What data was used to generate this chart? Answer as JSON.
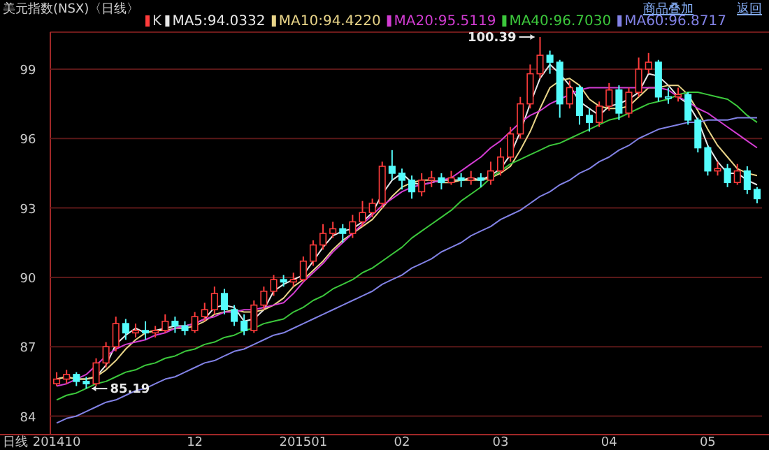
{
  "chart_data": {
    "type": "candlestick",
    "title": "美元指数(NSX)〈日线〉",
    "xlabel": "日线",
    "legend": "top left",
    "grid": "y",
    "ylim": [
      83.2,
      100.6
    ],
    "yticks": [
      84,
      87,
      90,
      93,
      96,
      99
    ],
    "annotations": [
      "商品叠加",
      "返回",
      "100.39",
      "85.19"
    ],
    "categories": [
      "201410",
      null,
      null,
      null,
      null,
      null,
      null,
      null,
      null,
      null,
      null,
      null,
      null,
      null,
      "12",
      null,
      null,
      null,
      null,
      null,
      null,
      null,
      null,
      null,
      null,
      "201501",
      null,
      null,
      null,
      null,
      null,
      null,
      null,
      null,
      null,
      "02",
      null,
      null,
      null,
      null,
      null,
      null,
      null,
      null,
      null,
      "03",
      null,
      null,
      null,
      null,
      null,
      null,
      null,
      null,
      null,
      null,
      "04",
      null,
      null,
      null,
      null,
      null,
      null,
      null,
      null,
      null,
      "05",
      null,
      null,
      null,
      null,
      null
    ],
    "series": [
      {
        "name": "K",
        "colors": [
          "#ff3c3c",
          "#ff3c3c",
          "#54fcfc",
          "#54fcfc",
          "#ff3c3c",
          "#ff3c3c",
          "#ff3c3c",
          "#54fcfc",
          "#ff3c3c",
          "#54fcfc",
          "#ff3c3c",
          "#ff3c3c",
          "#54fcfc",
          "#54fcfc",
          "#ff3c3c",
          "#ff3c3c",
          "#ff3c3c",
          "#54fcfc",
          "#54fcfc",
          "#54fcfc",
          "#ff3c3c",
          "#ff3c3c",
          "#ff3c3c",
          "#54fcfc",
          "#ff3c3c",
          "#ff3c3c",
          "#ff3c3c",
          "#ff3c3c",
          "#ff3c3c",
          "#54fcfc",
          "#ff3c3c",
          "#ff3c3c",
          "#ff3c3c",
          "#ff3c3c",
          "#54fcfc",
          "#54fcfc",
          "#54fcfc",
          "#ff3c3c",
          "#ff3c3c",
          "#54fcfc",
          "#ff3c3c",
          "#54fcfc",
          "#ff3c3c",
          "#54fcfc",
          "#ff3c3c",
          "#ff3c3c",
          "#ff3c3c",
          "#ff3c3c",
          "#ff3c3c",
          "#ff3c3c",
          "#54fcfc",
          "#54fcfc",
          "#ff3c3c",
          "#54fcfc",
          "#54fcfc",
          "#ff3c3c",
          "#ff3c3c",
          "#54fcfc",
          "#ff3c3c",
          "#ff3c3c",
          "#ff3c3c",
          "#54fcfc",
          "#54fcfc",
          "#ff3c3c",
          "#54fcfc",
          "#54fcfc",
          "#54fcfc",
          "#ff3c3c",
          "#54fcfc",
          "#ff3c3c",
          "#54fcfc",
          "#54fcfc"
        ],
        "ohlc": [
          [
            85.4,
            85.9,
            85.3,
            85.6
          ],
          [
            85.6,
            86.0,
            85.4,
            85.8
          ],
          [
            85.8,
            85.9,
            85.3,
            85.5
          ],
          [
            85.5,
            85.7,
            85.19,
            85.4
          ],
          [
            85.4,
            86.5,
            85.3,
            86.3
          ],
          [
            86.3,
            87.2,
            86.1,
            87.0
          ],
          [
            87.0,
            88.3,
            86.8,
            88.0
          ],
          [
            88.0,
            88.2,
            87.3,
            87.6
          ],
          [
            87.6,
            88.0,
            87.4,
            87.7
          ],
          [
            87.7,
            88.1,
            87.3,
            87.6
          ],
          [
            87.6,
            87.9,
            87.4,
            87.7
          ],
          [
            87.7,
            88.4,
            87.6,
            88.1
          ],
          [
            88.1,
            88.3,
            87.6,
            87.9
          ],
          [
            87.9,
            88.1,
            87.5,
            87.7
          ],
          [
            87.7,
            88.5,
            87.6,
            88.3
          ],
          [
            88.3,
            88.9,
            88.1,
            88.6
          ],
          [
            88.6,
            89.6,
            88.4,
            89.3
          ],
          [
            89.3,
            89.5,
            88.4,
            88.6
          ],
          [
            88.6,
            88.8,
            87.9,
            88.1
          ],
          [
            88.1,
            88.4,
            87.5,
            87.7
          ],
          [
            87.7,
            89.0,
            87.6,
            88.8
          ],
          [
            88.8,
            89.6,
            88.6,
            89.4
          ],
          [
            89.4,
            90.1,
            89.2,
            89.9
          ],
          [
            89.9,
            90.1,
            89.6,
            89.8
          ],
          [
            89.8,
            90.2,
            89.6,
            89.9
          ],
          [
            89.9,
            90.9,
            89.8,
            90.7
          ],
          [
            90.7,
            91.6,
            90.5,
            91.4
          ],
          [
            91.4,
            92.3,
            91.2,
            91.9
          ],
          [
            91.9,
            92.4,
            91.7,
            92.1
          ],
          [
            92.1,
            92.3,
            91.5,
            91.9
          ],
          [
            91.9,
            92.7,
            91.7,
            92.4
          ],
          [
            92.4,
            93.3,
            92.2,
            92.8
          ],
          [
            92.8,
            93.4,
            92.6,
            93.2
          ],
          [
            93.2,
            95.0,
            93.0,
            94.8
          ],
          [
            94.8,
            95.5,
            94.2,
            94.5
          ],
          [
            94.5,
            94.7,
            93.8,
            94.2
          ],
          [
            94.2,
            94.4,
            93.4,
            93.7
          ],
          [
            93.7,
            94.5,
            93.5,
            94.2
          ],
          [
            94.2,
            94.6,
            93.9,
            94.3
          ],
          [
            94.3,
            94.5,
            93.8,
            94.1
          ],
          [
            94.1,
            94.6,
            94.0,
            94.3
          ],
          [
            94.3,
            94.5,
            93.9,
            94.2
          ],
          [
            94.2,
            94.6,
            94.0,
            94.3
          ],
          [
            94.3,
            94.5,
            93.9,
            94.2
          ],
          [
            94.2,
            95.0,
            94.0,
            94.6
          ],
          [
            94.6,
            95.6,
            94.4,
            95.2
          ],
          [
            95.2,
            96.5,
            95.0,
            96.2
          ],
          [
            96.2,
            97.8,
            96.0,
            97.5
          ],
          [
            97.5,
            99.2,
            97.3,
            98.8
          ],
          [
            98.8,
            100.39,
            98.6,
            99.6
          ],
          [
            99.6,
            99.8,
            98.8,
            99.3
          ],
          [
            99.3,
            99.4,
            96.9,
            97.5
          ],
          [
            97.5,
            98.5,
            97.3,
            98.2
          ],
          [
            98.2,
            98.3,
            96.6,
            97.0
          ],
          [
            97.0,
            97.3,
            96.3,
            96.7
          ],
          [
            96.7,
            97.6,
            96.5,
            97.4
          ],
          [
            97.4,
            98.4,
            97.2,
            98.1
          ],
          [
            98.1,
            98.3,
            96.8,
            97.1
          ],
          [
            97.1,
            98.2,
            96.9,
            98.0
          ],
          [
            98.0,
            99.5,
            97.8,
            99.0
          ],
          [
            99.0,
            99.7,
            98.8,
            99.3
          ],
          [
            99.3,
            99.4,
            97.6,
            97.8
          ],
          [
            97.8,
            98.2,
            97.5,
            97.8
          ],
          [
            97.8,
            98.2,
            97.6,
            97.9
          ],
          [
            97.9,
            98.0,
            96.6,
            96.8
          ],
          [
            96.8,
            96.9,
            95.4,
            95.6
          ],
          [
            95.6,
            95.7,
            94.4,
            94.6
          ],
          [
            94.6,
            95.0,
            94.4,
            94.7
          ],
          [
            94.7,
            94.9,
            93.9,
            94.1
          ],
          [
            94.1,
            94.9,
            94.0,
            94.6
          ],
          [
            94.6,
            94.8,
            93.6,
            93.8
          ],
          [
            93.8,
            93.9,
            93.2,
            93.4
          ]
        ]
      },
      {
        "type": "line",
        "name": "MA5:94.0332",
        "color": "#e8e8e8",
        "values": [
          85.6,
          85.7,
          85.6,
          85.6,
          85.7,
          86.2,
          87.1,
          87.5,
          87.8,
          87.6,
          87.7,
          87.8,
          87.9,
          87.9,
          88.0,
          88.2,
          88.7,
          88.8,
          88.7,
          88.1,
          88.2,
          88.6,
          89.4,
          89.7,
          89.9,
          90.1,
          90.7,
          91.3,
          91.8,
          92.0,
          92.1,
          92.4,
          92.8,
          93.6,
          94.2,
          94.5,
          94.1,
          94.0,
          94.1,
          94.2,
          94.2,
          94.2,
          94.3,
          94.2,
          94.4,
          94.7,
          95.3,
          96.3,
          97.5,
          98.6,
          99.2,
          98.8,
          98.3,
          97.6,
          97.3,
          97.0,
          97.4,
          97.5,
          97.7,
          98.0,
          98.8,
          98.7,
          98.3,
          97.8,
          97.5,
          96.8,
          95.7,
          95.0,
          94.5,
          94.5,
          94.2,
          94.0
        ]
      },
      {
        "type": "line",
        "name": "MA10:94.4220",
        "color": "#e8d488",
        "values": [
          85.6,
          85.7,
          85.6,
          85.6,
          85.7,
          86.0,
          86.4,
          86.9,
          87.3,
          87.6,
          87.7,
          87.7,
          87.8,
          87.8,
          87.9,
          88.1,
          88.4,
          88.5,
          88.6,
          88.5,
          88.5,
          88.6,
          88.8,
          89.1,
          89.6,
          89.9,
          90.3,
          90.7,
          91.2,
          91.6,
          91.9,
          92.2,
          92.5,
          93.0,
          93.5,
          93.9,
          94.1,
          94.2,
          94.2,
          94.1,
          94.1,
          94.2,
          94.2,
          94.2,
          94.3,
          94.5,
          94.8,
          95.5,
          96.3,
          97.3,
          98.2,
          98.5,
          98.6,
          98.3,
          97.7,
          97.4,
          97.3,
          97.3,
          97.4,
          97.8,
          98.2,
          98.2,
          98.3,
          98.3,
          97.9,
          97.2,
          96.4,
          95.7,
          95.2,
          94.7,
          94.5,
          94.4
        ]
      },
      {
        "type": "line",
        "name": "MA20:95.5119",
        "color": "#d23cd2",
        "values": [
          85.3,
          85.4,
          85.6,
          85.8,
          86.2,
          86.6,
          86.9,
          87.1,
          87.2,
          87.3,
          87.5,
          87.6,
          87.8,
          87.9,
          88.0,
          88.2,
          88.3,
          88.5,
          88.5,
          88.6,
          88.6,
          88.7,
          88.8,
          88.9,
          89.3,
          89.8,
          90.2,
          90.6,
          91.1,
          91.5,
          91.9,
          92.3,
          92.7,
          93.1,
          93.4,
          93.7,
          93.9,
          94.0,
          94.1,
          94.2,
          94.3,
          94.6,
          94.9,
          95.2,
          95.6,
          95.9,
          96.3,
          96.7,
          97.0,
          97.2,
          97.5,
          97.7,
          97.9,
          98.1,
          98.2,
          98.2,
          98.2,
          98.2,
          98.2,
          98.2,
          98.2,
          98.2,
          98.1,
          97.8,
          97.6,
          97.3,
          97.1,
          96.8,
          96.5,
          96.2,
          95.9,
          95.6
        ]
      },
      {
        "type": "line",
        "name": "MA40:96.7030",
        "color": "#3cc83c",
        "values": [
          84.7,
          84.9,
          85.0,
          85.2,
          85.4,
          85.5,
          85.7,
          85.9,
          86.0,
          86.2,
          86.3,
          86.5,
          86.6,
          86.8,
          86.9,
          87.1,
          87.2,
          87.4,
          87.5,
          87.7,
          87.8,
          88.0,
          88.1,
          88.2,
          88.5,
          88.7,
          89.0,
          89.2,
          89.5,
          89.7,
          89.9,
          90.2,
          90.4,
          90.7,
          91.0,
          91.3,
          91.7,
          92.0,
          92.3,
          92.6,
          92.9,
          93.3,
          93.6,
          93.9,
          94.3,
          94.6,
          94.9,
          95.1,
          95.3,
          95.5,
          95.7,
          95.8,
          96.0,
          96.2,
          96.4,
          96.6,
          96.8,
          96.9,
          97.1,
          97.3,
          97.5,
          97.6,
          97.7,
          97.9,
          98.0,
          98.0,
          97.9,
          97.8,
          97.7,
          97.4,
          97.0,
          96.7
        ]
      },
      {
        "type": "line",
        "name": "MA60:96.8717",
        "color": "#8282e6",
        "values": [
          83.7,
          83.9,
          84.0,
          84.2,
          84.4,
          84.6,
          84.7,
          84.9,
          85.1,
          85.2,
          85.4,
          85.6,
          85.7,
          85.9,
          86.1,
          86.3,
          86.4,
          86.6,
          86.8,
          86.9,
          87.1,
          87.3,
          87.5,
          87.6,
          87.8,
          88.0,
          88.2,
          88.4,
          88.6,
          88.8,
          89.0,
          89.2,
          89.4,
          89.7,
          89.9,
          90.1,
          90.4,
          90.6,
          90.8,
          91.1,
          91.3,
          91.5,
          91.8,
          92.0,
          92.2,
          92.5,
          92.7,
          92.9,
          93.2,
          93.5,
          93.7,
          94.0,
          94.2,
          94.5,
          94.7,
          95.0,
          95.2,
          95.5,
          95.7,
          96.0,
          96.2,
          96.4,
          96.5,
          96.6,
          96.7,
          96.7,
          96.8,
          96.8,
          96.8,
          96.9,
          96.9,
          96.9
        ]
      }
    ]
  }
}
